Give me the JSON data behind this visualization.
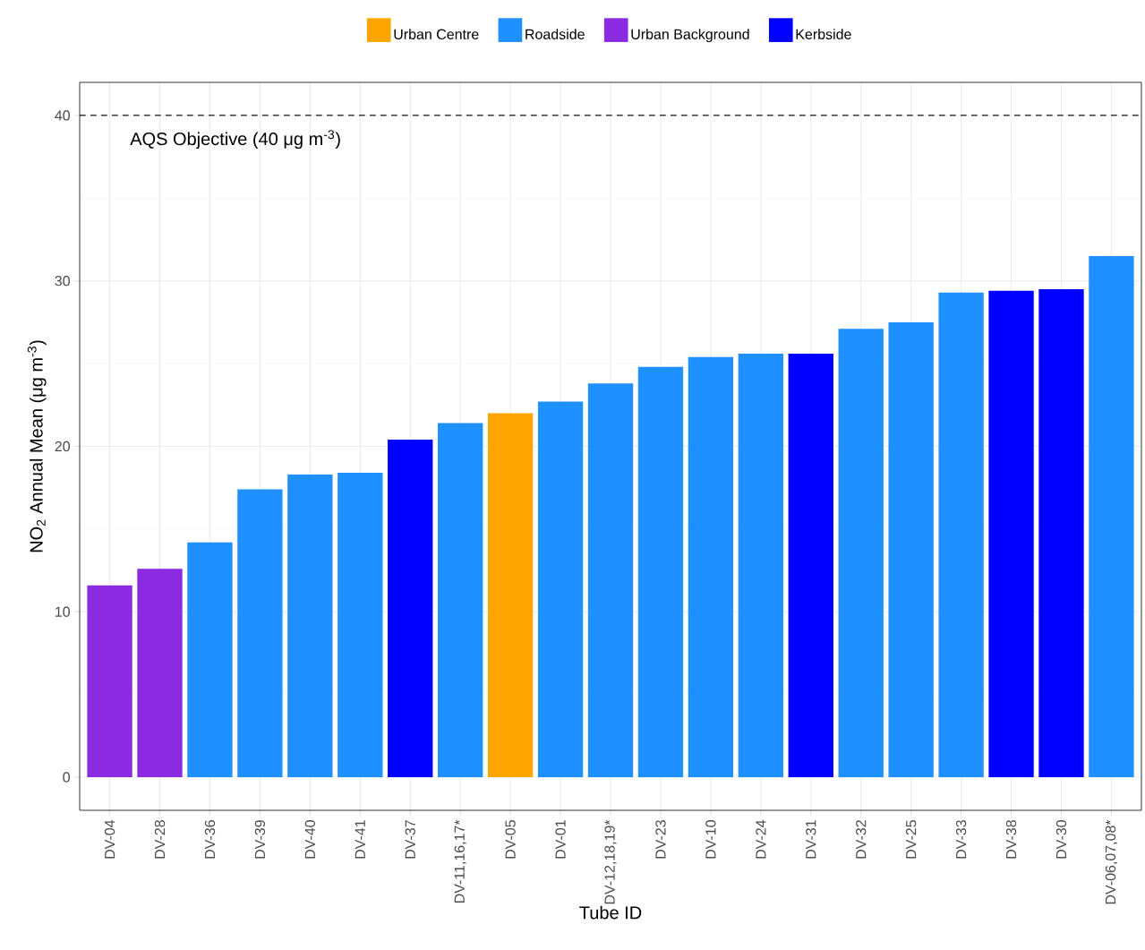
{
  "chart_data": {
    "type": "bar",
    "xlabel": "Tube ID",
    "ylabel": "NO$_{2}$ Annual Mean (μg m$^{-3}$)",
    "categories": [
      "DV-04",
      "DV-28",
      "DV-36",
      "DV-39",
      "DV-40",
      "DV-41",
      "DV-37",
      "DV-11,16,17*",
      "DV-05",
      "DV-01",
      "DV-12,18,19*",
      "DV-23",
      "DV-10",
      "DV-24",
      "DV-31",
      "DV-32",
      "DV-25",
      "DV-33",
      "DV-38",
      "DV-30",
      "DV-06,07,08*"
    ],
    "series": [
      {
        "name": "Urban Centre",
        "color": "#ffa500",
        "values": [
          null,
          null,
          null,
          null,
          null,
          null,
          null,
          null,
          22.0,
          null,
          null,
          null,
          null,
          null,
          null,
          null,
          null,
          null,
          null,
          null,
          null
        ]
      },
      {
        "name": "Roadside",
        "color": "#1e90ff",
        "values": [
          null,
          null,
          14.2,
          17.4,
          18.3,
          18.4,
          null,
          21.4,
          null,
          22.7,
          23.8,
          24.8,
          25.4,
          25.6,
          null,
          27.1,
          27.5,
          29.3,
          null,
          null,
          31.5
        ]
      },
      {
        "name": "Urban Background",
        "color": "#8a2be2",
        "values": [
          11.6,
          12.6,
          null,
          null,
          null,
          null,
          null,
          null,
          null,
          null,
          null,
          null,
          null,
          null,
          null,
          null,
          null,
          null,
          null,
          null,
          null
        ]
      },
      {
        "name": "Kerbside",
        "color": "#0000ff",
        "values": [
          null,
          null,
          null,
          null,
          null,
          null,
          20.4,
          null,
          null,
          null,
          null,
          null,
          null,
          null,
          25.6,
          null,
          null,
          null,
          29.4,
          29.5,
          null
        ]
      }
    ],
    "ylim": [
      -2,
      42
    ],
    "yticks": [
      0,
      10,
      20,
      30,
      40
    ],
    "ref_lines": [
      {
        "axis": "y",
        "value": 40,
        "label": "AQS Objective (40 μg m$^{-3}$)",
        "line_style": "dashed",
        "color": "#000000"
      }
    ],
    "grid": true,
    "legend": "top"
  }
}
